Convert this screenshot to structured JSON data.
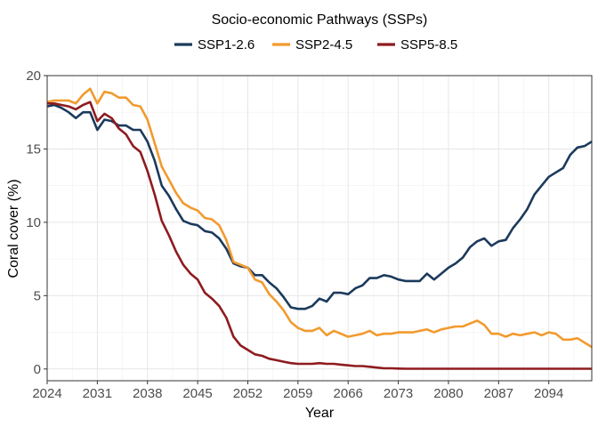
{
  "chart_data": {
    "type": "line",
    "title": "",
    "xlabel": "Year",
    "ylabel": "Coral cover (%)",
    "xlim": [
      2024,
      2100
    ],
    "ylim": [
      -0.8,
      20
    ],
    "x_ticks": [
      2024,
      2031,
      2038,
      2045,
      2052,
      2059,
      2066,
      2073,
      2080,
      2087,
      2094
    ],
    "x_tick_labels": [
      "2024",
      "2031",
      "2038",
      "2045",
      "2052",
      "2059",
      "2066",
      "2073",
      "2080",
      "2087",
      "2094"
    ],
    "y_ticks": [
      0,
      5,
      10,
      15,
      20
    ],
    "y_tick_labels": [
      "0",
      "5",
      "10",
      "15",
      "20"
    ],
    "grid": true,
    "legend": {
      "title": "Socio-economic Pathways (SSPs)",
      "position": "top"
    },
    "series": [
      {
        "name": "SSP1-2.6",
        "color": "#1b3a5c",
        "x": [
          2024,
          2025,
          2026,
          2027,
          2028,
          2029,
          2030,
          2031,
          2032,
          2033,
          2034,
          2035,
          2036,
          2037,
          2038,
          2039,
          2040,
          2041,
          2042,
          2043,
          2044,
          2045,
          2046,
          2047,
          2048,
          2049,
          2050,
          2051,
          2052,
          2053,
          2054,
          2055,
          2056,
          2057,
          2058,
          2059,
          2060,
          2061,
          2062,
          2063,
          2064,
          2065,
          2066,
          2067,
          2068,
          2069,
          2070,
          2071,
          2072,
          2073,
          2074,
          2075,
          2076,
          2077,
          2078,
          2079,
          2080,
          2081,
          2082,
          2083,
          2084,
          2085,
          2086,
          2087,
          2088,
          2089,
          2090,
          2091,
          2092,
          2093,
          2094,
          2095,
          2096,
          2097,
          2098,
          2099,
          2100
        ],
        "values": [
          17.9,
          18.0,
          17.8,
          17.5,
          17.1,
          17.5,
          17.5,
          16.3,
          17.0,
          16.9,
          16.6,
          16.6,
          16.3,
          16.3,
          15.5,
          14.2,
          12.5,
          11.8,
          10.9,
          10.1,
          9.9,
          9.8,
          9.4,
          9.3,
          8.9,
          8.2,
          7.2,
          7.0,
          6.9,
          6.4,
          6.4,
          5.9,
          5.5,
          4.9,
          4.2,
          4.1,
          4.1,
          4.3,
          4.8,
          4.6,
          5.2,
          5.2,
          5.1,
          5.5,
          5.7,
          6.2,
          6.2,
          6.4,
          6.3,
          6.1,
          6.0,
          6.0,
          6.0,
          6.5,
          6.1,
          6.5,
          6.9,
          7.2,
          7.6,
          8.3,
          8.7,
          8.9,
          8.4,
          8.7,
          8.8,
          9.6,
          10.2,
          10.9,
          11.9,
          12.5,
          13.1,
          13.4,
          13.7,
          14.6,
          15.1,
          15.2,
          15.5
        ]
      },
      {
        "name": "SSP2-4.5",
        "color": "#f29a2e",
        "x": [
          2024,
          2025,
          2026,
          2027,
          2028,
          2029,
          2030,
          2031,
          2032,
          2033,
          2034,
          2035,
          2036,
          2037,
          2038,
          2039,
          2040,
          2041,
          2042,
          2043,
          2044,
          2045,
          2046,
          2047,
          2048,
          2049,
          2050,
          2051,
          2052,
          2053,
          2054,
          2055,
          2056,
          2057,
          2058,
          2059,
          2060,
          2061,
          2062,
          2063,
          2064,
          2065,
          2066,
          2067,
          2068,
          2069,
          2070,
          2071,
          2072,
          2073,
          2074,
          2075,
          2076,
          2077,
          2078,
          2079,
          2080,
          2081,
          2082,
          2083,
          2084,
          2085,
          2086,
          2087,
          2088,
          2089,
          2090,
          2091,
          2092,
          2093,
          2094,
          2095,
          2096,
          2097,
          2098,
          2099,
          2100
        ],
        "values": [
          18.2,
          18.3,
          18.3,
          18.3,
          18.1,
          18.7,
          19.1,
          18.1,
          18.9,
          18.8,
          18.5,
          18.5,
          18.0,
          17.9,
          17.0,
          15.4,
          13.8,
          12.9,
          12.0,
          11.3,
          11.0,
          10.8,
          10.3,
          10.2,
          9.8,
          8.8,
          7.3,
          7.1,
          6.9,
          6.1,
          5.9,
          5.1,
          4.6,
          4.0,
          3.2,
          2.8,
          2.6,
          2.6,
          2.8,
          2.3,
          2.6,
          2.4,
          2.2,
          2.3,
          2.4,
          2.6,
          2.3,
          2.4,
          2.4,
          2.5,
          2.5,
          2.5,
          2.6,
          2.7,
          2.5,
          2.7,
          2.8,
          2.9,
          2.9,
          3.1,
          3.3,
          3.0,
          2.4,
          2.4,
          2.2,
          2.4,
          2.3,
          2.4,
          2.5,
          2.3,
          2.5,
          2.4,
          2.0,
          2.0,
          2.1,
          1.8,
          1.5
        ]
      },
      {
        "name": "SSP5-8.5",
        "color": "#8e1b1f",
        "x": [
          2024,
          2025,
          2026,
          2027,
          2028,
          2029,
          2030,
          2031,
          2032,
          2033,
          2034,
          2035,
          2036,
          2037,
          2038,
          2039,
          2040,
          2041,
          2042,
          2043,
          2044,
          2045,
          2046,
          2047,
          2048,
          2049,
          2050,
          2051,
          2052,
          2053,
          2054,
          2055,
          2056,
          2057,
          2058,
          2059,
          2060,
          2061,
          2062,
          2063,
          2064,
          2065,
          2066,
          2067,
          2068,
          2069,
          2070,
          2071,
          2072,
          2073,
          2074,
          2075,
          2076,
          2077,
          2078,
          2079,
          2080,
          2081,
          2082,
          2083,
          2084,
          2085,
          2086,
          2087,
          2088,
          2089,
          2090,
          2091,
          2092,
          2093,
          2094,
          2095,
          2096,
          2097,
          2098,
          2099,
          2100
        ],
        "values": [
          18.1,
          18.1,
          18.0,
          17.9,
          17.7,
          18.0,
          18.2,
          16.9,
          17.4,
          17.1,
          16.4,
          16.0,
          15.2,
          14.8,
          13.5,
          11.9,
          10.1,
          9.1,
          8.0,
          7.1,
          6.5,
          6.1,
          5.2,
          4.8,
          4.3,
          3.5,
          2.2,
          1.6,
          1.3,
          1.0,
          0.9,
          0.7,
          0.6,
          0.5,
          0.4,
          0.35,
          0.35,
          0.35,
          0.4,
          0.35,
          0.35,
          0.3,
          0.25,
          0.2,
          0.2,
          0.15,
          0.1,
          0.05,
          0.05,
          0.03,
          0.02,
          0.02,
          0.02,
          0.02,
          0.02,
          0.02,
          0.02,
          0.02,
          0.02,
          0.02,
          0.02,
          0.02,
          0.02,
          0.02,
          0.02,
          0.02,
          0.02,
          0.02,
          0.02,
          0.02,
          0.02,
          0.02,
          0.02,
          0.02,
          0.02,
          0.02,
          0.02
        ]
      }
    ]
  }
}
